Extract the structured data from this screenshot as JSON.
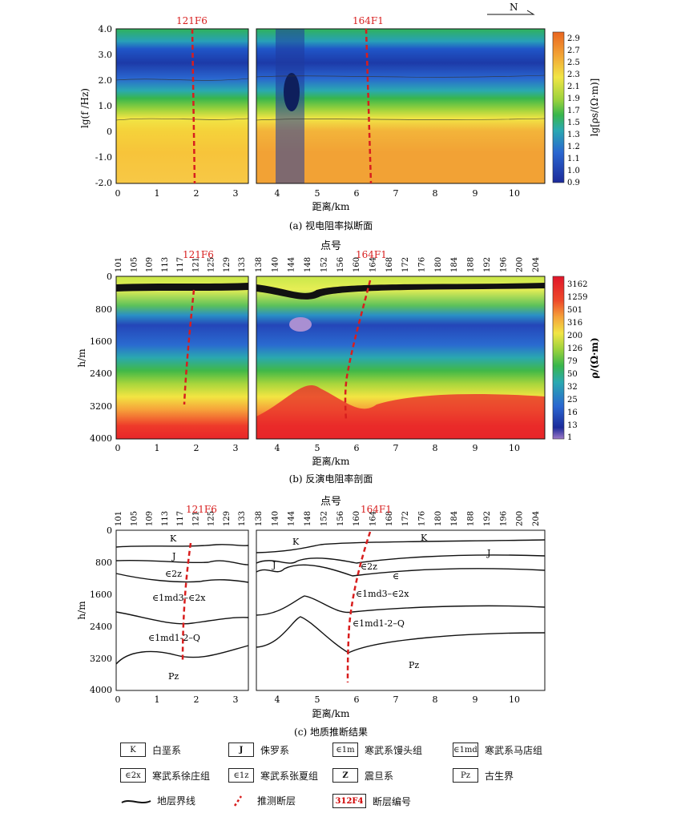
{
  "north_label": "N",
  "panel_a": {
    "caption": "(a)  视电阻率拟断面",
    "ylabel": "lg(f /Hz)",
    "xlabel": "距离/km",
    "yticks": [
      "4.0",
      "3.0",
      "2.0",
      "1.0",
      "0",
      "-1.0",
      "-2.0"
    ],
    "xticks": [
      "0",
      "1",
      "2",
      "3",
      "4",
      "5",
      "6",
      "7",
      "8",
      "9",
      "10"
    ],
    "colorbar_title": "lg[ρs/(Ω·m)]",
    "colorbar_labels": [
      "2.9",
      "2.7",
      "2.5",
      "2.3",
      "2.1",
      "1.9",
      "1.7",
      "1.5",
      "1.3",
      "1.2",
      "1.1",
      "1.0",
      "0.9"
    ],
    "faults": [
      "121F6",
      "164F1"
    ]
  },
  "panel_b": {
    "caption": "(b)  反演电阻率剖面",
    "top_title": "点号",
    "ylabel": "h/m",
    "xlabel": "距离/km",
    "yticks": [
      "0",
      "800",
      "1600",
      "2400",
      "3200",
      "4000"
    ],
    "xticks": [
      "4",
      "5",
      "6",
      "7",
      "8",
      "9",
      "10"
    ],
    "xticks_left": [
      "0",
      "1",
      "2",
      "3"
    ],
    "station_left": [
      "101",
      "105",
      "109",
      "113",
      "117",
      "121",
      "125",
      "129",
      "133"
    ],
    "station_right": [
      "138",
      "140",
      "144",
      "148",
      "152",
      "156",
      "160",
      "164",
      "168",
      "172",
      "176",
      "180",
      "184",
      "188",
      "192",
      "196",
      "200",
      "204"
    ],
    "colorbar_title": "ρ/(Ω·m)",
    "colorbar_labels": [
      "3162",
      "1259",
      "501",
      "316",
      "200",
      "126",
      "79",
      "50",
      "32",
      "25",
      "16",
      "13",
      "1"
    ],
    "faults": [
      "121F6",
      "164F1"
    ]
  },
  "panel_c": {
    "caption": "(c)  地质推断结果",
    "top_title": "点号",
    "ylabel": "h/m",
    "xlabel": "距离/km",
    "yticks": [
      "0",
      "800",
      "1600",
      "2400",
      "3200",
      "4000"
    ],
    "xticks_left": [
      "0",
      "1",
      "2",
      "3"
    ],
    "xticks": [
      "4",
      "5",
      "6",
      "7",
      "8",
      "9",
      "10"
    ],
    "station_left": [
      "101",
      "105",
      "109",
      "113",
      "117",
      "121",
      "125",
      "129",
      "133"
    ],
    "station_right": [
      "138",
      "140",
      "144",
      "148",
      "152",
      "156",
      "160",
      "164",
      "168",
      "172",
      "176",
      "180",
      "184",
      "188",
      "192",
      "196",
      "200",
      "204"
    ],
    "faults": [
      "121F6",
      "164F1"
    ],
    "unit_labels": {
      "k1": "K",
      "k2": "K",
      "j1": "J",
      "j2": "J",
      "j3": "J",
      "e2z_a": "∈2z",
      "e2z_b": "∈2z",
      "e_right": "∈",
      "md3_a": "∈1md3–∈2x",
      "md3_b": "∈1md3–∈2x",
      "md12_a": "∈1md1-2–Q",
      "md12_b": "∈1md1-2–Q",
      "pz_a": "Pz",
      "pz_b": "Pz"
    }
  },
  "legend": [
    {
      "symbol": "K",
      "label": "白垩系"
    },
    {
      "symbol": "J",
      "label": "侏罗系"
    },
    {
      "symbol": "∈1m",
      "label": "寒武系馒头组"
    },
    {
      "symbol": "∈1md",
      "label": "寒武系马店组"
    },
    {
      "symbol": "∈2x",
      "label": "寒武系徐庄组"
    },
    {
      "symbol": "∈1z",
      "label": "寒武系张夏组"
    },
    {
      "symbol": "Z",
      "label": "震旦系"
    },
    {
      "symbol": "Pz",
      "label": "古生界"
    },
    {
      "symbol": "",
      "label": "地层界线"
    },
    {
      "symbol": "",
      "label": "推测断层"
    },
    {
      "symbol": "312F4",
      "label": "断层编号"
    }
  ],
  "colors": {
    "fault": "#d81e1e"
  }
}
